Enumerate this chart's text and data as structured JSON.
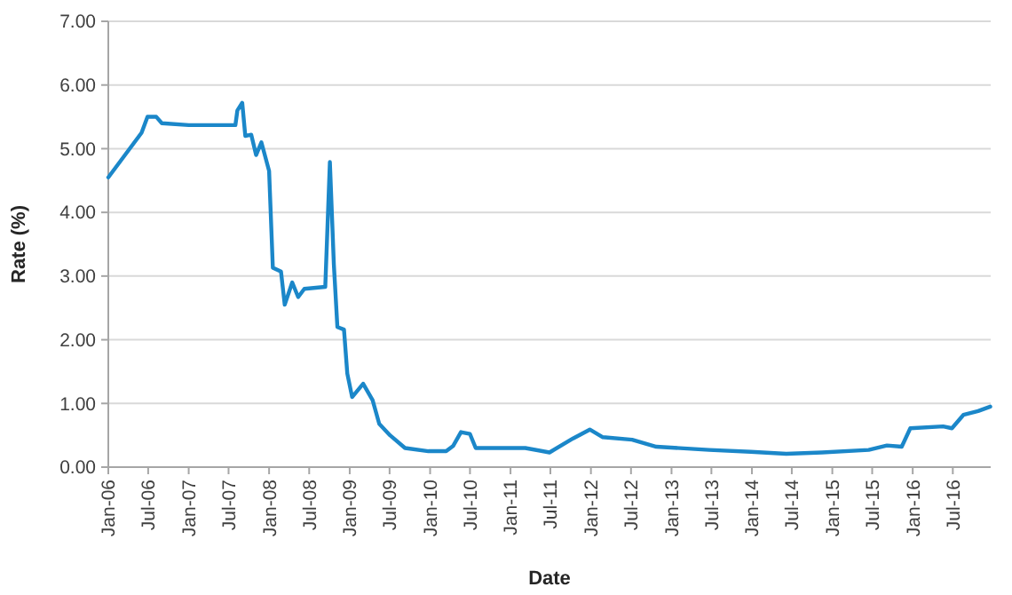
{
  "chart_data": {
    "type": "line",
    "xlabel": "Date",
    "ylabel": "Rate (%)",
    "grid": "y",
    "line_style": "solid",
    "marker": "none",
    "xlim": [
      "2006-01-01",
      "2016-12-20"
    ],
    "xticks": [
      {
        "value": "2006-01-01",
        "label": "Jan-06"
      },
      {
        "value": "2006-07-01",
        "label": "Jul-06"
      },
      {
        "value": "2007-01-01",
        "label": "Jan-07"
      },
      {
        "value": "2007-07-01",
        "label": "Jul-07"
      },
      {
        "value": "2008-01-01",
        "label": "Jan-08"
      },
      {
        "value": "2008-07-01",
        "label": "Jul-08"
      },
      {
        "value": "2009-01-01",
        "label": "Jan-09"
      },
      {
        "value": "2009-07-01",
        "label": "Jul-09"
      },
      {
        "value": "2010-01-01",
        "label": "Jan-10"
      },
      {
        "value": "2010-07-01",
        "label": "Jul-10"
      },
      {
        "value": "2011-01-01",
        "label": "Jan-11"
      },
      {
        "value": "2011-07-01",
        "label": "Jul-11"
      },
      {
        "value": "2012-01-01",
        "label": "Jan-12"
      },
      {
        "value": "2012-07-01",
        "label": "Jul-12"
      },
      {
        "value": "2013-01-01",
        "label": "Jan-13"
      },
      {
        "value": "2013-07-01",
        "label": "Jul-13"
      },
      {
        "value": "2014-01-01",
        "label": "Jan-14"
      },
      {
        "value": "2014-07-01",
        "label": "Jul-14"
      },
      {
        "value": "2015-01-01",
        "label": "Jan-15"
      },
      {
        "value": "2015-07-01",
        "label": "Jul-15"
      },
      {
        "value": "2016-01-01",
        "label": "Jan-16"
      },
      {
        "value": "2016-07-01",
        "label": "Jul-16"
      }
    ],
    "ylim": [
      0,
      7
    ],
    "yticks": [
      {
        "value": 0,
        "label": "0.00"
      },
      {
        "value": 1,
        "label": "1.00"
      },
      {
        "value": 2,
        "label": "2.00"
      },
      {
        "value": 3,
        "label": "3.00"
      },
      {
        "value": 4,
        "label": "4.00"
      },
      {
        "value": 5,
        "label": "5.00"
      },
      {
        "value": 6,
        "label": "6.00"
      },
      {
        "value": 7,
        "label": "7.00"
      }
    ],
    "x": [
      "2006-01-01",
      "2006-06-01",
      "2006-06-28",
      "2006-08-07",
      "2006-09-01",
      "2007-01-01",
      "2007-08-01",
      "2007-08-10",
      "2007-09-01",
      "2007-09-15",
      "2007-10-12",
      "2007-11-03",
      "2007-11-27",
      "2008-01-01",
      "2008-01-18",
      "2008-02-24",
      "2008-03-12",
      "2008-04-15",
      "2008-05-12",
      "2008-06-09",
      "2008-09-12",
      "2008-10-03",
      "2008-10-21",
      "2008-11-06",
      "2008-12-06",
      "2008-12-21",
      "2009-01-12",
      "2009-03-03",
      "2009-04-15",
      "2009-05-15",
      "2009-07-03",
      "2009-09-09",
      "2009-12-24",
      "2010-03-15",
      "2010-04-15",
      "2010-05-21",
      "2010-07-01",
      "2010-07-27",
      "2010-12-24",
      "2011-03-09",
      "2011-06-27",
      "2011-10-12",
      "2011-12-27",
      "2012-02-24",
      "2012-07-06",
      "2012-10-24",
      "2013-06-21",
      "2013-12-27",
      "2014-06-06",
      "2014-11-15",
      "2015-06-15",
      "2015-09-06",
      "2015-11-12",
      "2015-12-21",
      "2016-05-18",
      "2016-06-27",
      "2016-08-18",
      "2016-10-24",
      "2016-12-18"
    ],
    "series": [
      {
        "color": "#1b87c9",
        "values": [
          4.55,
          5.25,
          5.5,
          5.5,
          5.4,
          5.37,
          5.37,
          5.6,
          5.72,
          5.2,
          5.22,
          4.9,
          5.1,
          4.65,
          3.13,
          3.07,
          2.55,
          2.9,
          2.67,
          2.8,
          2.83,
          4.79,
          3.18,
          2.2,
          2.16,
          1.47,
          1.1,
          1.31,
          1.05,
          0.68,
          0.5,
          0.3,
          0.25,
          0.25,
          0.33,
          0.55,
          0.52,
          0.3,
          0.3,
          0.3,
          0.23,
          0.45,
          0.59,
          0.47,
          0.43,
          0.32,
          0.27,
          0.24,
          0.21,
          0.23,
          0.27,
          0.34,
          0.32,
          0.61,
          0.64,
          0.61,
          0.82,
          0.88,
          0.95
        ]
      }
    ]
  }
}
